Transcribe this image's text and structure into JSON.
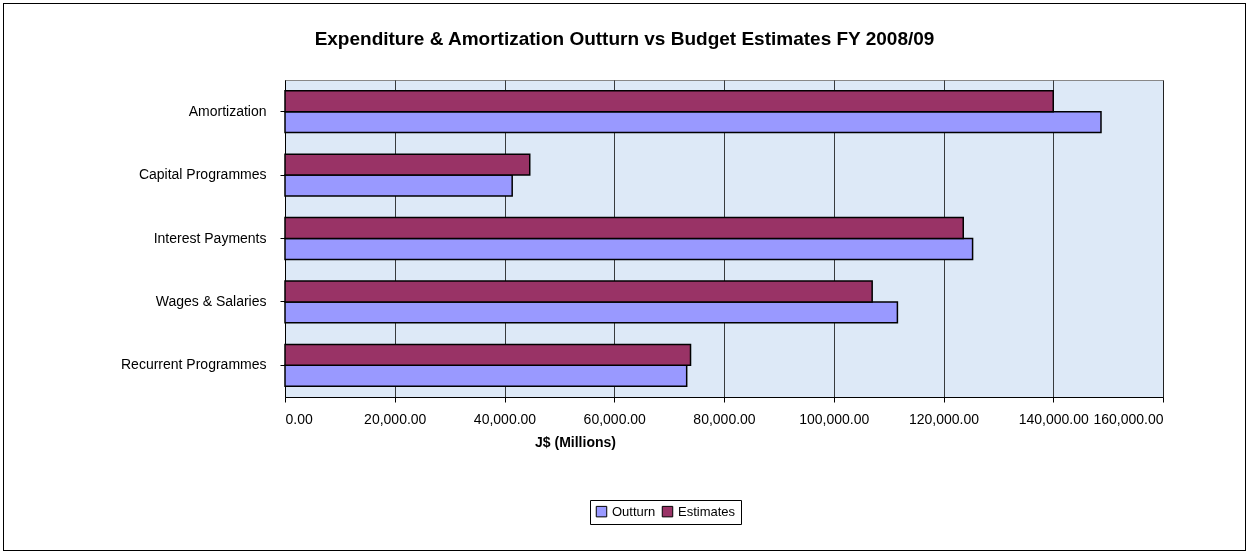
{
  "chart_data": {
    "type": "bar",
    "orientation": "horizontal",
    "title": "Expenditure & Amortization Outturn vs Budget Estimates FY 2008/09",
    "xlabel": "J$ (Millions)",
    "categories": [
      "Amortization",
      "Capital Programmes",
      "Interest Payments",
      "Wages & Salaries",
      "Recurrent Programmes"
    ],
    "series": [
      {
        "name": "Outturn",
        "color": "#9999ff",
        "values": [
          148700,
          41400,
          125300,
          111600,
          73200
        ]
      },
      {
        "name": "Estimates",
        "color": "#993366",
        "values": [
          140000,
          44600,
          123600,
          107000,
          73900
        ]
      }
    ],
    "xlim": [
      0,
      160000
    ],
    "xticks": [
      {
        "value": 0,
        "label": "0.00"
      },
      {
        "value": 20000,
        "label": "20,000.00"
      },
      {
        "value": 40000,
        "label": "40,000.00"
      },
      {
        "value": 60000,
        "label": "60,000.00"
      },
      {
        "value": 80000,
        "label": "80,000.00"
      },
      {
        "value": 100000,
        "label": "100,000.00"
      },
      {
        "value": 120000,
        "label": "120,000.00"
      },
      {
        "value": 140000,
        "label": "140,000.00"
      },
      {
        "value": 160000,
        "label": "160,000.00"
      }
    ],
    "grid": "x",
    "legend": "bottom"
  }
}
